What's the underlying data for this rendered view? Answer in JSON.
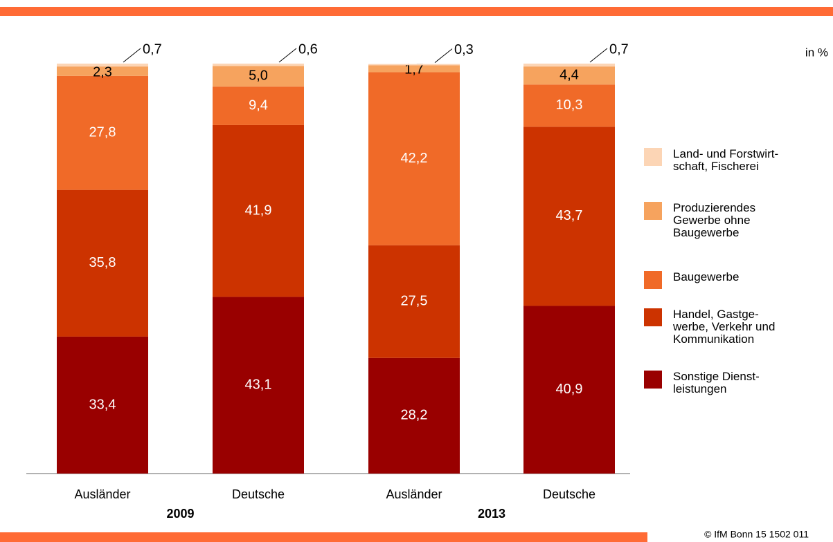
{
  "chart_data": {
    "type": "stacked_bar",
    "unit_label": "in %",
    "source": "© IfM Bonn 15 1502 011",
    "categories": [
      "Ausländer",
      "Deutsche",
      "Ausländer",
      "Deutsche"
    ],
    "groups": [
      {
        "label": "2009",
        "categories": [
          0,
          1
        ]
      },
      {
        "label": "2013",
        "categories": [
          2,
          3
        ]
      }
    ],
    "ylim": [
      0,
      100
    ],
    "series": [
      {
        "name": "Sonstige Dienst-\nleistungen",
        "color": "#990000",
        "label_color": "#ffffff",
        "values": [
          33.4,
          43.1,
          28.2,
          40.9
        ],
        "value_labels": [
          "33,4",
          "43,1",
          "28,2",
          "40,9"
        ]
      },
      {
        "name": "Handel, Gastge-\nwerbe, Verkehr und\nKommunikation",
        "color": "#cc3300",
        "label_color": "#ffffff",
        "values": [
          35.8,
          41.9,
          27.5,
          43.7
        ],
        "value_labels": [
          "35,8",
          "41,9",
          "27,5",
          "43,7"
        ]
      },
      {
        "name": "Baugewerbe",
        "color": "#f06a28",
        "label_color": "#ffffff",
        "values": [
          27.8,
          9.4,
          42.2,
          10.3
        ],
        "value_labels": [
          "27,8",
          "9,4",
          "42,2",
          "10,3"
        ]
      },
      {
        "name": "Produzierendes\nGewerbe ohne\nBaugewerbe",
        "color": "#f6a35e",
        "label_color": "#000000",
        "values": [
          2.3,
          5.0,
          1.7,
          4.4
        ],
        "value_labels": [
          "2,3",
          "5,0",
          "1,7",
          "4,4"
        ]
      },
      {
        "name": "Land- und Forstwirt-\nschaft, Fischerei",
        "color": "#fcd5b5",
        "label_color": "#000000",
        "values": [
          0.7,
          0.6,
          0.3,
          0.7
        ],
        "value_labels": [
          "0,7",
          "0,6",
          "0,3",
          "0,7"
        ]
      }
    ]
  }
}
